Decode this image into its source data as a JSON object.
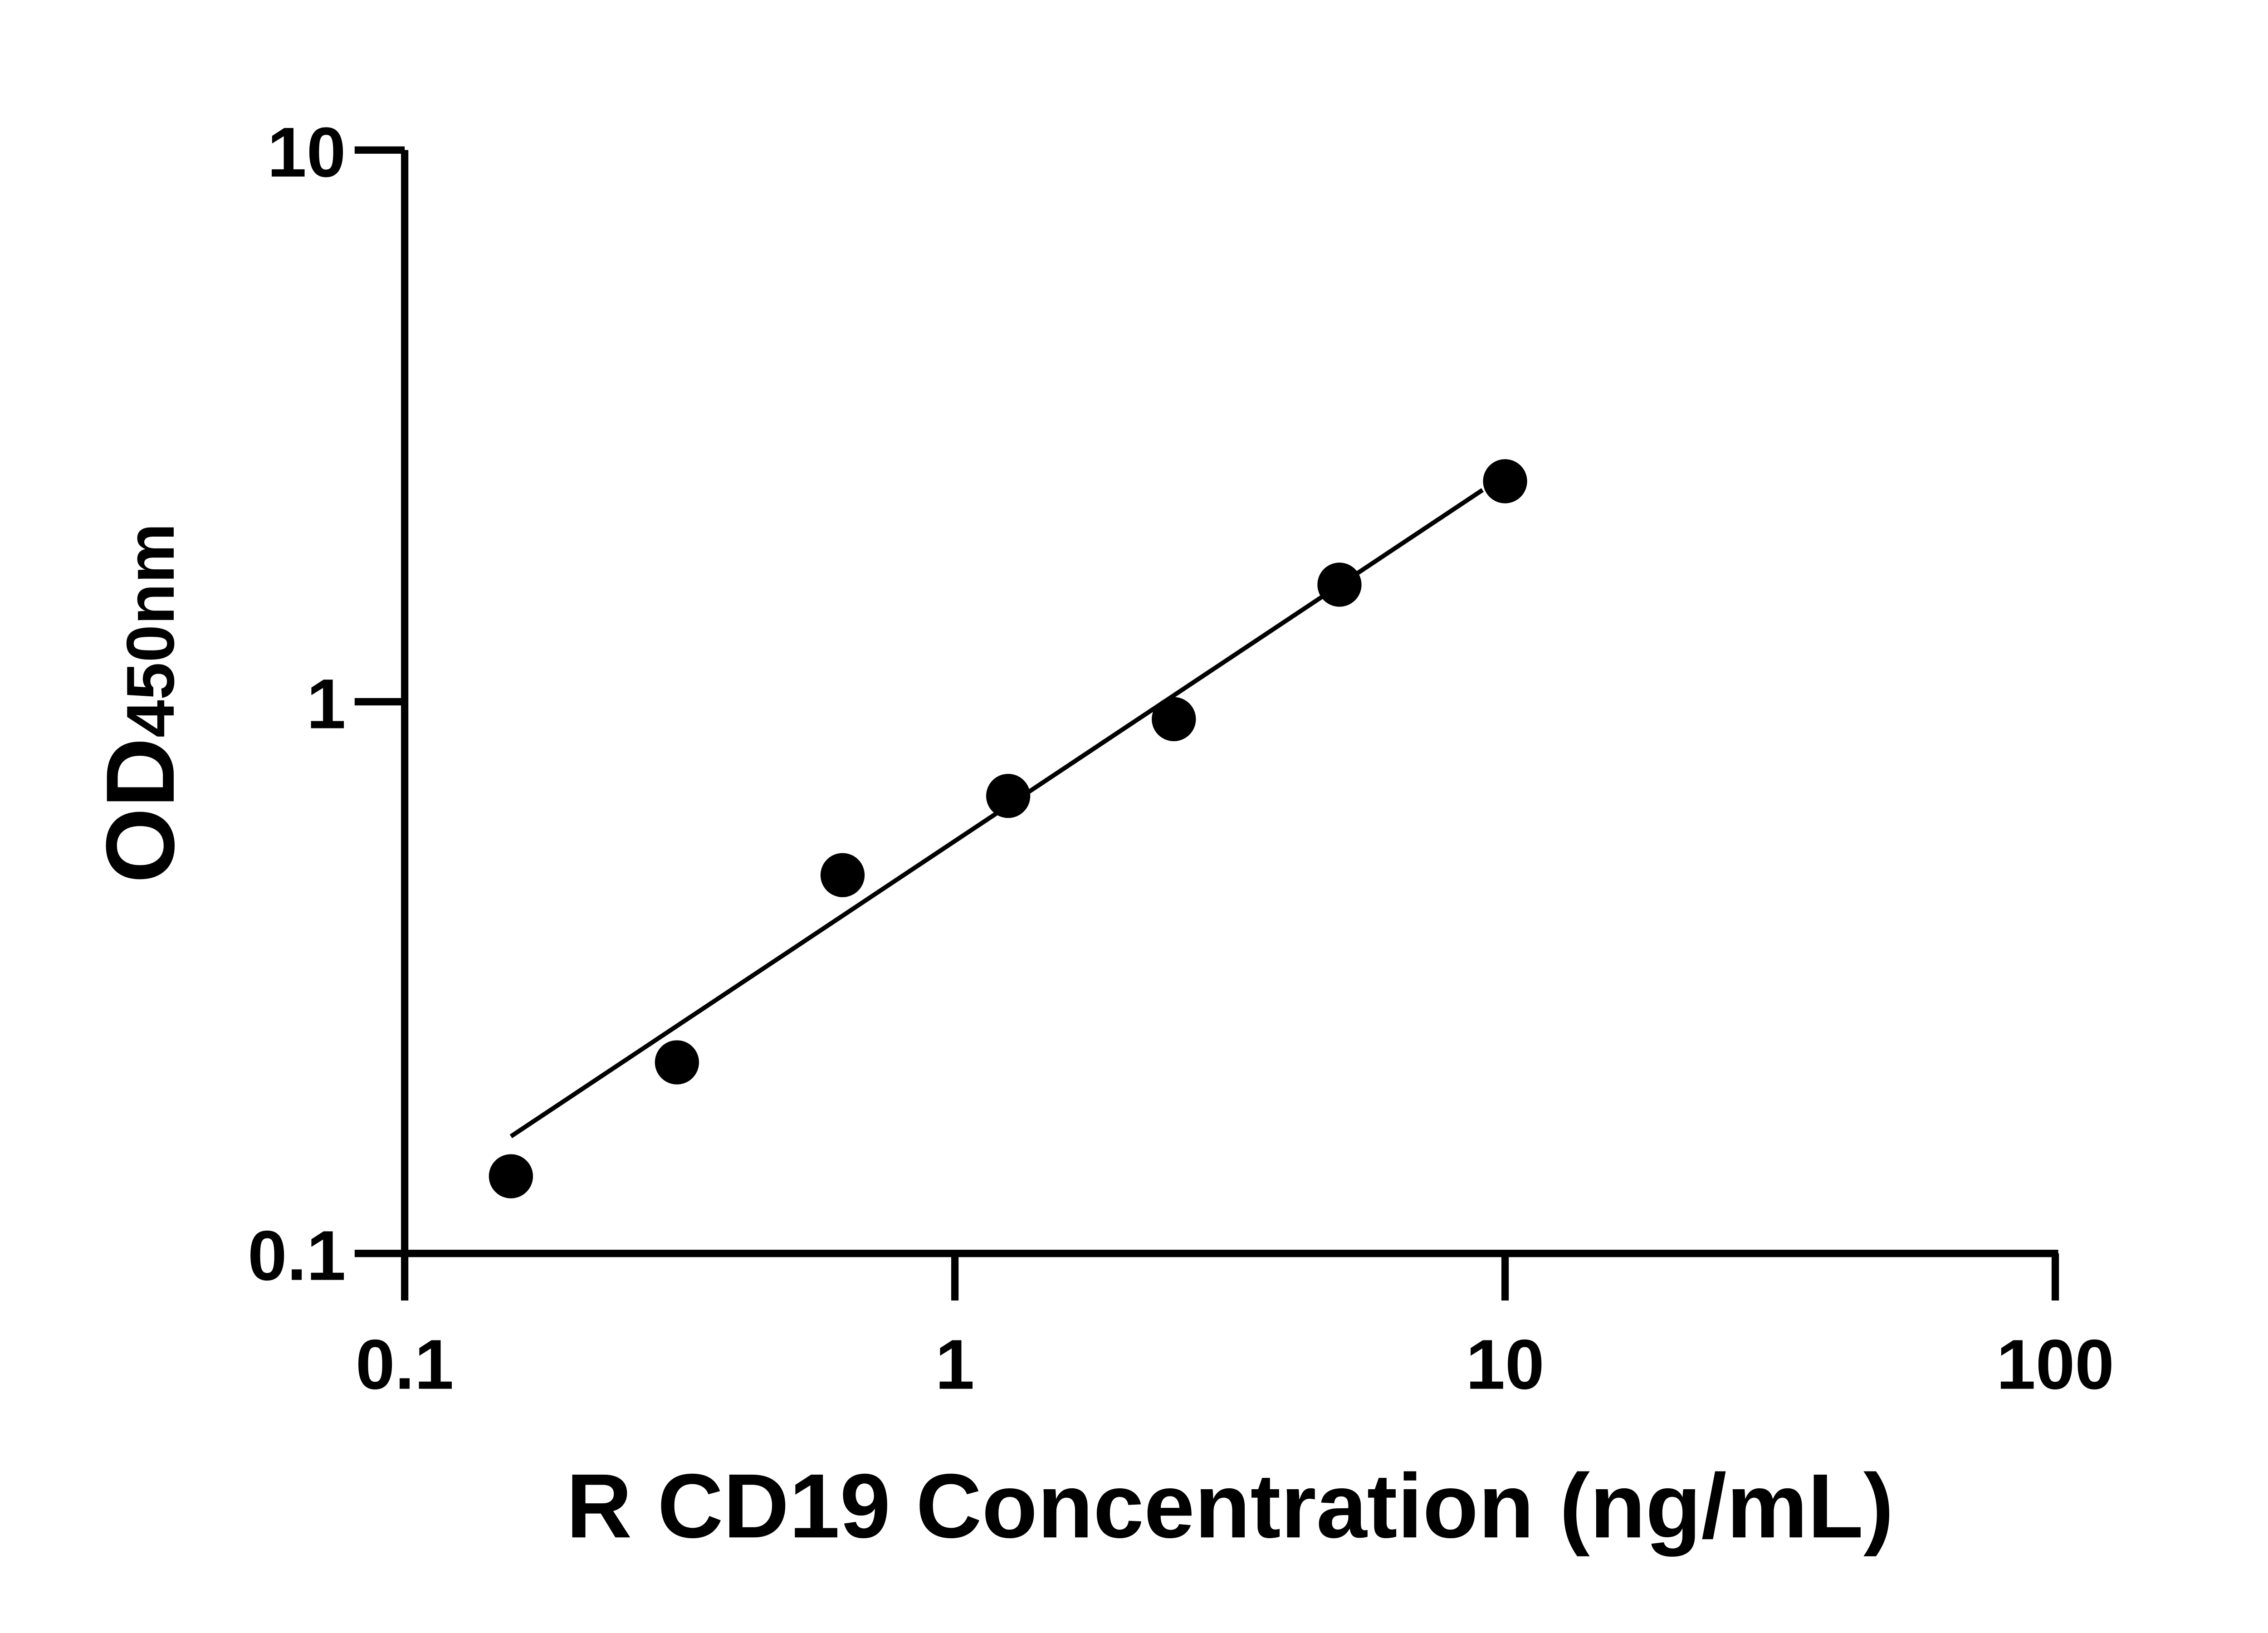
{
  "chart_data": {
    "type": "scatter",
    "title": "",
    "xlabel": "R CD19 Concentration (ng/mL)",
    "ylabel_main": "OD",
    "ylabel_sub": "450nm",
    "x_scale": "log",
    "y_scale": "log",
    "xlim": [
      0.1,
      100
    ],
    "ylim": [
      0.1,
      10
    ],
    "x_ticks": [
      0.1,
      1,
      10,
      100
    ],
    "x_tick_labels": [
      "0.1",
      "1",
      "10",
      "100"
    ],
    "y_ticks": [
      0.1,
      1,
      10
    ],
    "y_tick_labels": [
      "0.1",
      "1",
      "10"
    ],
    "grid": false,
    "legend": "none",
    "series": [
      {
        "x": [
          0.156,
          0.3125,
          0.625,
          1.25,
          2.5,
          5,
          10
        ],
        "y": [
          0.138,
          0.222,
          0.485,
          0.675,
          0.93,
          1.63,
          2.51
        ],
        "marker": "circle",
        "color": "#000000"
      }
    ],
    "fit_line": {
      "x": [
        0.156,
        9.1
      ],
      "y": [
        0.163,
        2.42
      ],
      "color": "#000000"
    }
  }
}
